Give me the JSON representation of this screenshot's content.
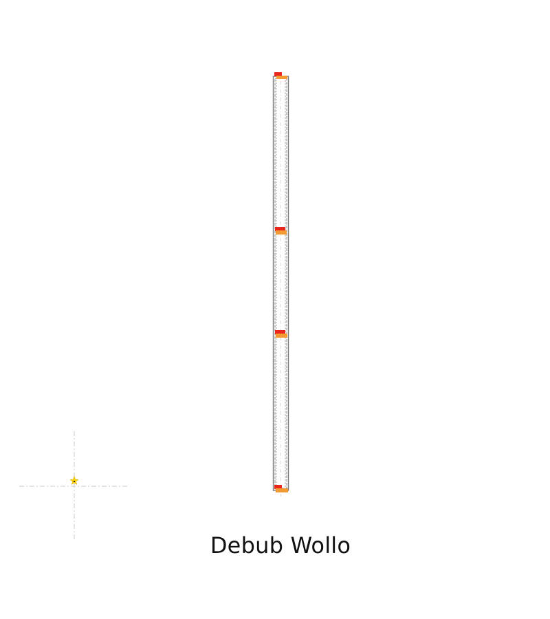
{
  "map": {
    "title": "Debub Wollo",
    "colors": {
      "boundary": "#7a7a7a",
      "inner_line": "#cfcfcf",
      "marker_red": "#e8261c",
      "marker_orange": "#f39a33",
      "locator_star": "#ffd400",
      "crosshair": "#c8c8c8"
    },
    "markers": [
      {
        "name": "marker-top",
        "icon": "red-orange-block"
      },
      {
        "name": "marker-upper-middle",
        "icon": "red-orange-block"
      },
      {
        "name": "marker-lower-middle",
        "icon": "red-orange-block"
      },
      {
        "name": "marker-bottom",
        "icon": "red-orange-block"
      }
    ],
    "locator": {
      "icon": "star-icon"
    }
  }
}
